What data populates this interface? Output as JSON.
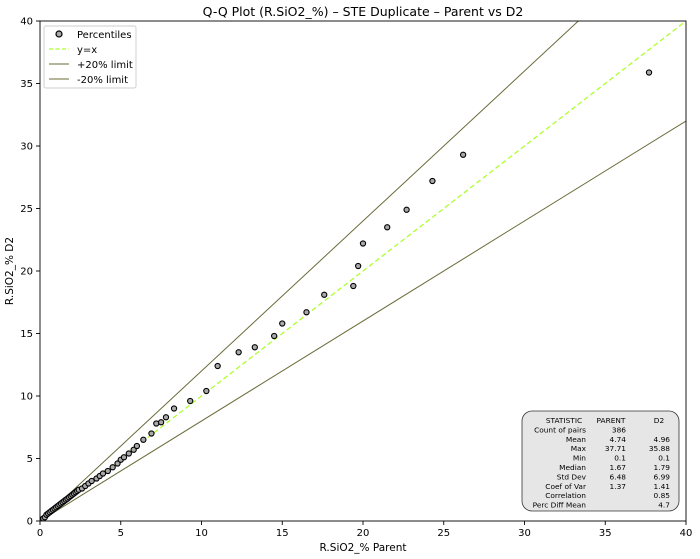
{
  "chart_data": {
    "type": "scatter",
    "title": "Q-Q Plot (R.SiO2_%) – STE Duplicate – Parent vs D2",
    "xlabel": "R.SiO2_% Parent",
    "ylabel": "R.SiO2_% D2",
    "xlim": [
      0,
      40
    ],
    "ylim": [
      0,
      40
    ],
    "xticks": [
      0,
      5,
      10,
      15,
      20,
      25,
      30,
      35,
      40
    ],
    "yticks": [
      0,
      5,
      10,
      15,
      20,
      25,
      30,
      35,
      40
    ],
    "grid": false,
    "legend_position": "top-left",
    "legend": [
      {
        "label": "Percentiles",
        "kind": "marker"
      },
      {
        "label": "y=x",
        "kind": "dashed"
      },
      {
        "label": "+20% limit",
        "kind": "line"
      },
      {
        "label": "-20% limit",
        "kind": "line"
      }
    ],
    "colors": {
      "marker_fill": "#a9a9a9",
      "marker_edge": "#000000",
      "identity_line": "#adff2f",
      "limit_line": "#6b6b3a"
    },
    "reference_lines": [
      {
        "name": "y=x",
        "slope": 1.0
      },
      {
        "name": "+20% limit",
        "slope": 1.2
      },
      {
        "name": "-20% limit",
        "slope": 0.8
      }
    ],
    "series": [
      {
        "name": "Percentiles",
        "x": [
          0.1,
          0.2,
          0.3,
          0.4,
          0.5,
          0.6,
          0.7,
          0.8,
          0.9,
          1.0,
          1.1,
          1.2,
          1.3,
          1.4,
          1.5,
          1.6,
          1.7,
          1.8,
          1.9,
          2.0,
          2.1,
          2.2,
          2.3,
          2.4,
          2.6,
          2.8,
          3.0,
          3.2,
          3.5,
          3.7,
          3.9,
          4.2,
          4.5,
          4.8,
          5.0,
          5.2,
          5.5,
          5.8,
          6.0,
          6.4,
          6.9,
          7.2,
          7.5,
          7.8,
          8.3,
          9.3,
          10.3,
          11.0,
          12.3,
          13.3,
          14.5,
          15.0,
          16.5,
          17.6,
          19.4,
          19.7,
          20.0,
          21.5,
          22.7,
          24.3,
          26.2,
          37.71
        ],
        "y": [
          0.1,
          0.2,
          0.3,
          0.5,
          0.6,
          0.7,
          0.8,
          0.9,
          1.0,
          1.1,
          1.2,
          1.3,
          1.4,
          1.5,
          1.6,
          1.7,
          1.79,
          1.9,
          2.0,
          2.1,
          2.2,
          2.3,
          2.4,
          2.5,
          2.6,
          2.8,
          3.0,
          3.2,
          3.4,
          3.6,
          3.8,
          4.0,
          4.3,
          4.6,
          4.9,
          5.1,
          5.4,
          5.7,
          6.0,
          6.5,
          7.0,
          7.8,
          7.9,
          8.3,
          9.0,
          9.6,
          10.4,
          12.4,
          13.5,
          13.9,
          14.8,
          15.8,
          16.7,
          18.1,
          18.8,
          20.4,
          22.2,
          23.5,
          24.9,
          27.2,
          29.3,
          35.88
        ]
      }
    ],
    "stats_table": {
      "headers": [
        "STATISTIC",
        "PARENT",
        "D2"
      ],
      "rows": [
        [
          "Count of pairs",
          "386",
          ""
        ],
        [
          "Mean",
          "4.74",
          "4.96"
        ],
        [
          "Max",
          "37.71",
          "35.88"
        ],
        [
          "Min",
          "0.1",
          "0.1"
        ],
        [
          "Median",
          "1.67",
          "1.79"
        ],
        [
          "Std Dev",
          "6.48",
          "6.99"
        ],
        [
          "Coef of Var",
          "1.37",
          "1.41"
        ],
        [
          "Correlation",
          "",
          "0.85"
        ],
        [
          "Perc Diff Mean",
          "",
          "4.7"
        ]
      ]
    }
  }
}
